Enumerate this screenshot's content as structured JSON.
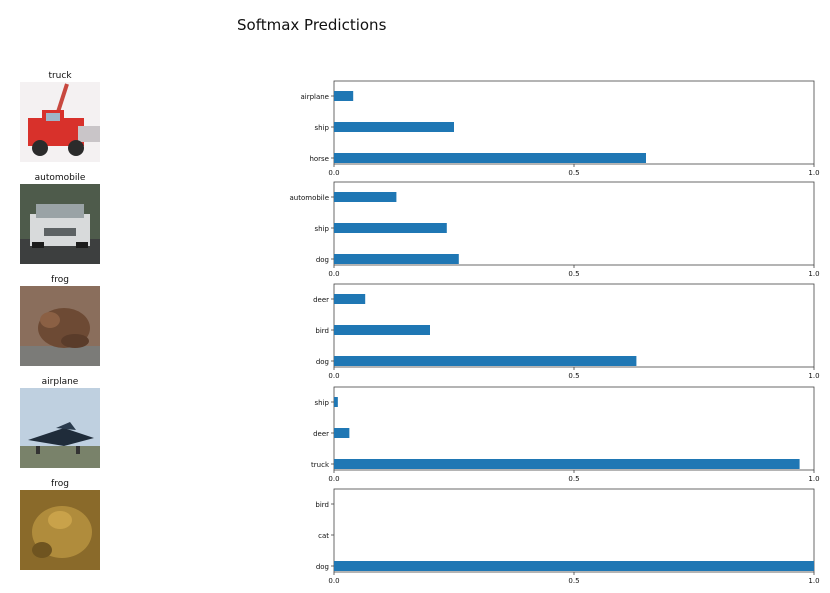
{
  "title": "Softmax Predictions",
  "chart_data": [
    {
      "type": "bar",
      "orientation": "horizontal",
      "image_label": "truck",
      "image_icon": "truck-image",
      "categories": [
        "airplane",
        "ship",
        "horse"
      ],
      "values": [
        0.04,
        0.25,
        0.65
      ],
      "xlim": [
        0,
        1.0
      ],
      "xticks": [
        "0.0",
        "0.5",
        "1.0"
      ],
      "bar_color": "#1f77b4"
    },
    {
      "type": "bar",
      "orientation": "horizontal",
      "image_label": "automobile",
      "image_icon": "car-image",
      "categories": [
        "automobile",
        "ship",
        "dog"
      ],
      "values": [
        0.13,
        0.235,
        0.26
      ],
      "xlim": [
        0,
        1.0
      ],
      "xticks": [
        "0.0",
        "0.5",
        "1.0"
      ],
      "bar_color": "#1f77b4"
    },
    {
      "type": "bar",
      "orientation": "horizontal",
      "image_label": "frog",
      "image_icon": "frog-image",
      "categories": [
        "deer",
        "bird",
        "dog"
      ],
      "values": [
        0.065,
        0.2,
        0.63
      ],
      "xlim": [
        0,
        1.0
      ],
      "xticks": [
        "0.0",
        "0.5",
        "1.0"
      ],
      "bar_color": "#1f77b4"
    },
    {
      "type": "bar",
      "orientation": "horizontal",
      "image_label": "airplane",
      "image_icon": "airplane-image",
      "categories": [
        "ship",
        "deer",
        "truck"
      ],
      "values": [
        0.008,
        0.032,
        0.97
      ],
      "xlim": [
        0,
        1.0
      ],
      "xticks": [
        "0.0",
        "0.5",
        "1.0"
      ],
      "bar_color": "#1f77b4"
    },
    {
      "type": "bar",
      "orientation": "horizontal",
      "image_label": "frog",
      "image_icon": "frog-image",
      "categories": [
        "bird",
        "cat",
        "dog"
      ],
      "values": [
        0.0,
        0.0,
        1.0
      ],
      "xlim": [
        0,
        1.0
      ],
      "xticks": [
        "0.0",
        "0.5",
        "1.0"
      ],
      "bar_color": "#1f77b4"
    }
  ]
}
